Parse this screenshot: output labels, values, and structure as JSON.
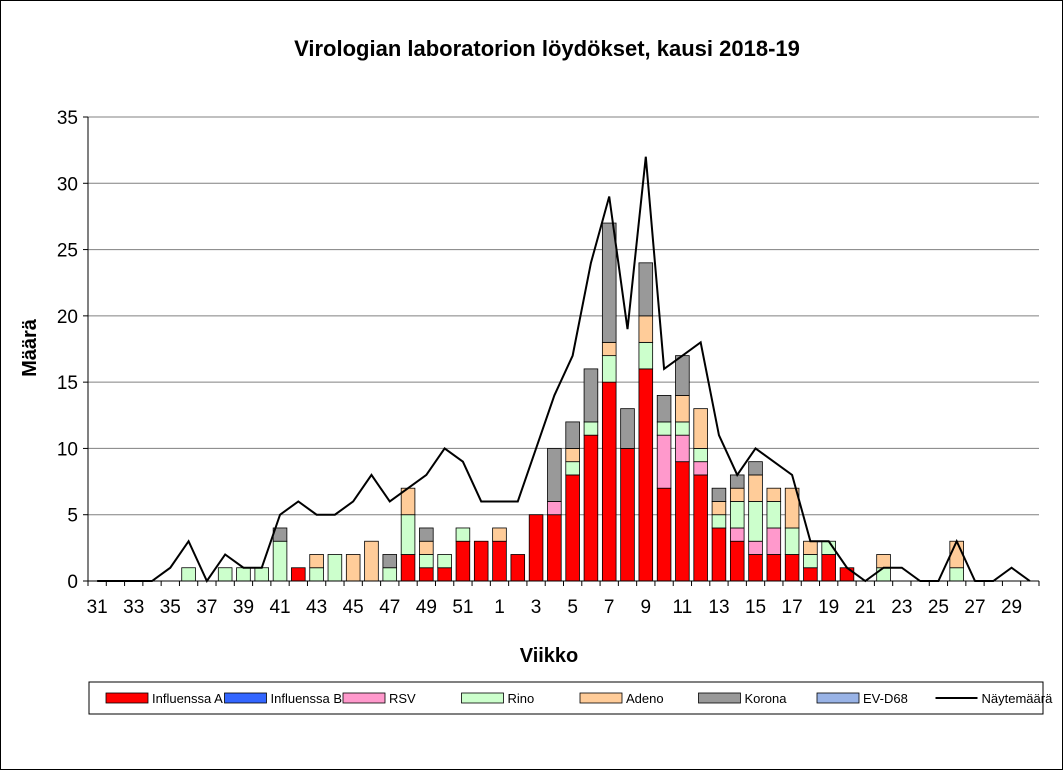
{
  "chart_data": {
    "type": "bar",
    "stacked": true,
    "title": "Virologian laboratorion löydökset, kausi 2018-19",
    "xlabel": "Viikko",
    "ylabel": "Määrä",
    "ylim": [
      0,
      35
    ],
    "yticks": [
      0,
      5,
      10,
      15,
      20,
      25,
      30,
      35
    ],
    "grid": true,
    "legend_position": "bottom",
    "categories": [
      "31",
      "32",
      "33",
      "34",
      "35",
      "36",
      "37",
      "38",
      "39",
      "40",
      "41",
      "42",
      "43",
      "44",
      "45",
      "46",
      "47",
      "48",
      "49",
      "50",
      "51",
      "52",
      "1",
      "2",
      "3",
      "4",
      "5",
      "6",
      "7",
      "8",
      "9",
      "10",
      "11",
      "12",
      "13",
      "14",
      "15",
      "16",
      "17",
      "18",
      "19",
      "20",
      "21",
      "22",
      "23",
      "24",
      "25",
      "26",
      "27",
      "28",
      "29",
      "30"
    ],
    "xtick_labels": [
      "31",
      "33",
      "35",
      "37",
      "39",
      "41",
      "43",
      "45",
      "47",
      "49",
      "51",
      "1",
      "3",
      "5",
      "7",
      "9",
      "11",
      "13",
      "15",
      "17",
      "19",
      "21",
      "23",
      "25",
      "27",
      "29"
    ],
    "series": [
      {
        "name": "Influenssa A",
        "color": "#ff0000",
        "values": [
          0,
          0,
          0,
          0,
          0,
          0,
          0,
          0,
          0,
          0,
          0,
          1,
          0,
          0,
          0,
          0,
          0,
          2,
          1,
          1,
          3,
          3,
          3,
          2,
          5,
          5,
          8,
          11,
          15,
          10,
          16,
          7,
          9,
          8,
          4,
          3,
          2,
          2,
          2,
          1,
          2,
          1,
          0,
          0,
          0,
          0,
          0,
          0,
          0,
          0,
          0,
          0
        ]
      },
      {
        "name": "Influenssa B",
        "color": "#3366ff",
        "values": [
          0,
          0,
          0,
          0,
          0,
          0,
          0,
          0,
          0,
          0,
          0,
          0,
          0,
          0,
          0,
          0,
          0,
          0,
          0,
          0,
          0,
          0,
          0,
          0,
          0,
          0,
          0,
          0,
          0,
          0,
          0,
          0,
          0,
          0,
          0,
          0,
          0,
          0,
          0,
          0,
          0,
          0,
          0,
          0,
          0,
          0,
          0,
          0,
          0,
          0,
          0,
          0
        ]
      },
      {
        "name": "RSV",
        "color": "#ff99cc",
        "values": [
          0,
          0,
          0,
          0,
          0,
          0,
          0,
          0,
          0,
          0,
          0,
          0,
          0,
          0,
          0,
          0,
          0,
          0,
          0,
          0,
          0,
          0,
          0,
          0,
          0,
          1,
          0,
          0,
          0,
          0,
          0,
          4,
          2,
          1,
          0,
          1,
          1,
          2,
          0,
          0,
          0,
          0,
          0,
          0,
          0,
          0,
          0,
          0,
          0,
          0,
          0,
          0
        ]
      },
      {
        "name": "Rino",
        "color": "#ccffcc",
        "values": [
          0,
          0,
          0,
          0,
          0,
          1,
          0,
          1,
          1,
          1,
          3,
          0,
          1,
          2,
          0,
          0,
          1,
          3,
          1,
          1,
          1,
          0,
          0,
          0,
          0,
          0,
          1,
          1,
          2,
          0,
          2,
          1,
          1,
          1,
          1,
          2,
          3,
          2,
          2,
          1,
          1,
          0,
          0,
          1,
          0,
          0,
          0,
          1,
          0,
          0,
          0,
          0
        ]
      },
      {
        "name": "Adeno",
        "color": "#ffcc99",
        "values": [
          0,
          0,
          0,
          0,
          0,
          0,
          0,
          0,
          0,
          0,
          0,
          0,
          1,
          0,
          2,
          3,
          0,
          2,
          1,
          0,
          0,
          0,
          1,
          0,
          0,
          0,
          1,
          0,
          1,
          0,
          2,
          0,
          2,
          3,
          1,
          1,
          2,
          1,
          3,
          1,
          0,
          0,
          0,
          1,
          0,
          0,
          0,
          2,
          0,
          0,
          0,
          0
        ]
      },
      {
        "name": "Korona",
        "color": "#999999",
        "values": [
          0,
          0,
          0,
          0,
          0,
          0,
          0,
          0,
          0,
          0,
          1,
          0,
          0,
          0,
          0,
          0,
          1,
          0,
          1,
          0,
          0,
          0,
          0,
          0,
          0,
          4,
          2,
          4,
          9,
          3,
          4,
          2,
          3,
          0,
          1,
          1,
          1,
          0,
          0,
          0,
          0,
          0,
          0,
          0,
          0,
          0,
          0,
          0,
          0,
          0,
          0,
          0
        ]
      },
      {
        "name": "EV-D68",
        "color": "#99b3e6",
        "values": [
          0,
          0,
          0,
          0,
          0,
          0,
          0,
          0,
          0,
          0,
          0,
          0,
          0,
          0,
          0,
          0,
          0,
          0,
          0,
          0,
          0,
          0,
          0,
          0,
          0,
          0,
          0,
          0,
          0,
          0,
          0,
          0,
          0,
          0,
          0,
          0,
          0,
          0,
          0,
          0,
          0,
          0,
          0,
          0,
          0,
          0,
          0,
          0,
          0,
          0,
          0,
          0
        ]
      }
    ],
    "line": {
      "name": "Näytemäärä",
      "color": "#000000",
      "values": [
        0,
        0,
        0,
        0,
        1,
        3,
        0,
        2,
        1,
        1,
        5,
        6,
        5,
        5,
        6,
        8,
        6,
        7,
        8,
        10,
        9,
        6,
        6,
        6,
        10,
        14,
        17,
        24,
        29,
        19,
        32,
        16,
        17,
        18,
        11,
        8,
        10,
        9,
        8,
        3,
        3,
        1,
        0,
        1,
        1,
        0,
        0,
        3,
        0,
        0,
        1,
        0
      ]
    }
  }
}
